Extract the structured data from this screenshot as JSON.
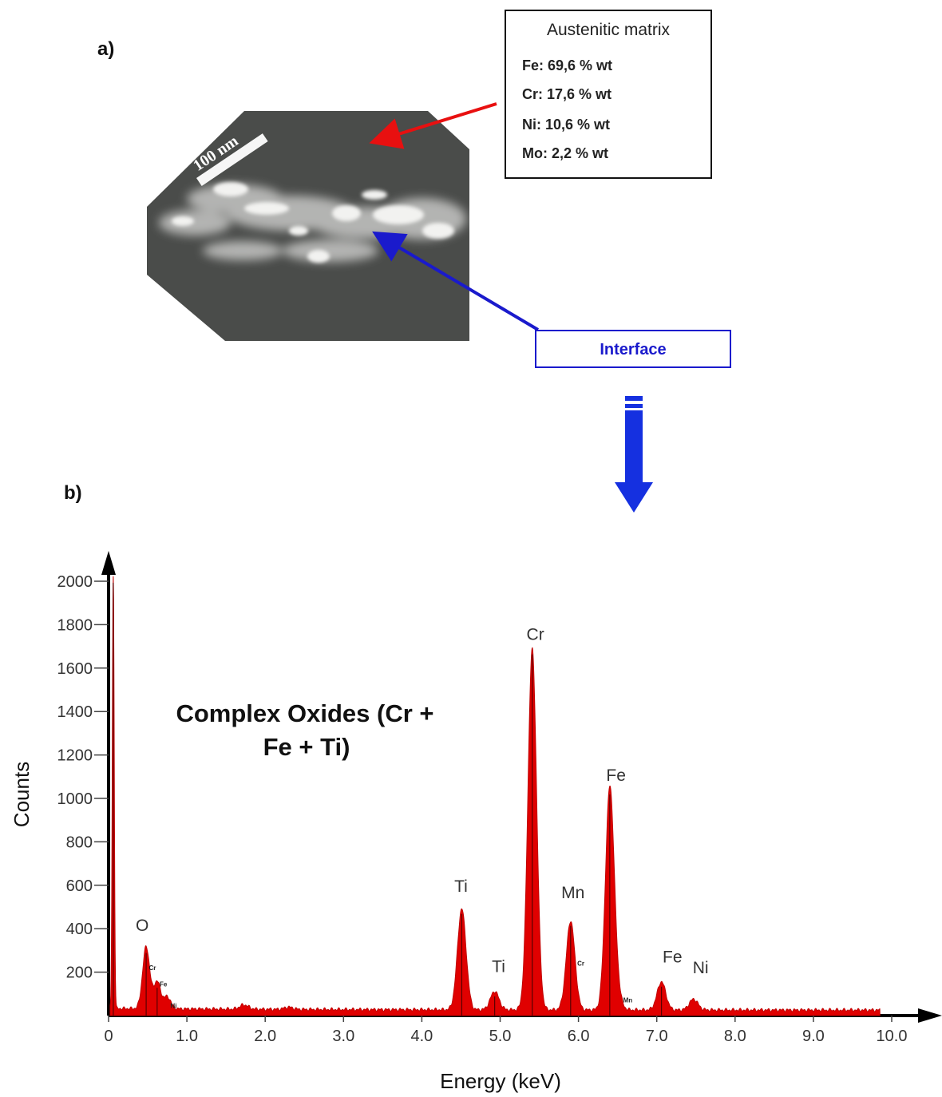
{
  "panel_a_label": "a)",
  "panel_b_label": "b)",
  "micrograph": {
    "scale_bar_label": "100 nm"
  },
  "matrix_box": {
    "title": "Austenitic matrix",
    "compositions": [
      {
        "text": "Fe: 69,6 % wt"
      },
      {
        "text": "Cr: 17,6 % wt"
      },
      {
        "text": "Ni: 10,6 % wt"
      },
      {
        "text": "Mo: 2,2 % wt"
      }
    ]
  },
  "interface_box": {
    "label": "Interface"
  },
  "colors": {
    "spectrum": "#e00000",
    "matrix_arrow": "#e81010",
    "interface_arrow": "#1a1acc",
    "down_arrow": "#1530e0",
    "micrograph_bg": "#4a4c4a"
  },
  "chart_data": {
    "type": "area",
    "xlabel": "Energy (keV)",
    "ylabel": "Counts",
    "xlim": [
      0,
      10.0
    ],
    "ylim": [
      0,
      2000
    ],
    "x_ticks": [
      "0",
      "1.0",
      "2.0",
      "3.0",
      "4.0",
      "5.0",
      "6.0",
      "7.0",
      "8.0",
      "9.0",
      "10.0"
    ],
    "y_ticks": [
      "200",
      "400",
      "600",
      "800",
      "1000",
      "1200",
      "1400",
      "1600",
      "1800",
      "2000"
    ],
    "annotation": [
      "Complex Oxides (Cr +",
      "Fe + Ti)"
    ],
    "baseline_counts": 25,
    "peaks": [
      {
        "energy": 0.06,
        "counts": 2015
      },
      {
        "energy": 0.48,
        "counts": 310
      },
      {
        "energy": 0.62,
        "counts": 150
      },
      {
        "energy": 0.75,
        "counts": 80
      },
      {
        "energy": 1.73,
        "counts": 45
      },
      {
        "energy": 2.3,
        "counts": 35
      },
      {
        "energy": 4.51,
        "counts": 490
      },
      {
        "energy": 4.93,
        "counts": 110
      },
      {
        "energy": 5.41,
        "counts": 1685
      },
      {
        "energy": 5.9,
        "counts": 435
      },
      {
        "energy": 6.4,
        "counts": 1040
      },
      {
        "energy": 6.49,
        "counts": 90
      },
      {
        "energy": 7.06,
        "counts": 155
      },
      {
        "energy": 7.47,
        "counts": 75
      }
    ],
    "peak_labels": [
      {
        "text": "O",
        "energy": 0.43,
        "counts": 390
      },
      {
        "text": "Ti",
        "energy": 4.5,
        "counts": 570
      },
      {
        "text": "Ti",
        "energy": 4.98,
        "counts": 200
      },
      {
        "text": "Cr",
        "energy": 5.45,
        "counts": 1730
      },
      {
        "text": "Mn",
        "energy": 5.93,
        "counts": 540
      },
      {
        "text": "Fe",
        "energy": 6.48,
        "counts": 1080
      },
      {
        "text": "Fe",
        "energy": 7.2,
        "counts": 245
      },
      {
        "text": "Ni",
        "energy": 7.56,
        "counts": 195
      }
    ],
    "minor_labels": [
      {
        "text": "Cr",
        "energy": 0.56,
        "counts": 210
      },
      {
        "text": "Fe",
        "energy": 0.7,
        "counts": 135
      },
      {
        "text": "Ni",
        "energy": 0.83,
        "counts": 35
      },
      {
        "text": "Cr",
        "energy": 6.03,
        "counts": 230
      },
      {
        "text": "Mn",
        "energy": 6.63,
        "counts": 60
      }
    ]
  }
}
